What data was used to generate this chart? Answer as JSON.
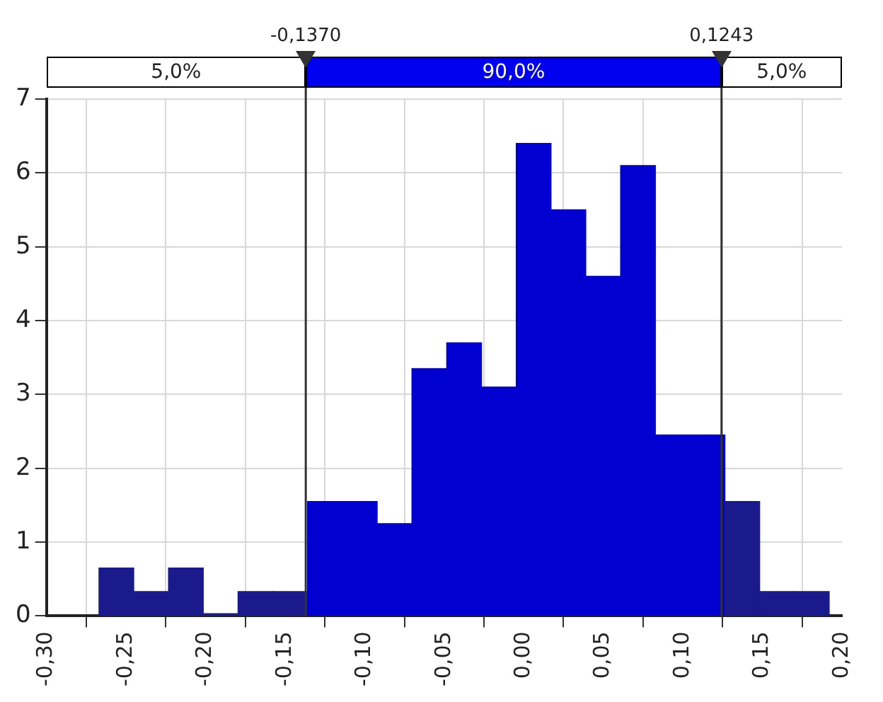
{
  "chart_data": {
    "type": "histogram",
    "bins": [
      -0.267,
      -0.2451,
      -0.2233,
      -0.2014,
      -0.1796,
      -0.1577,
      -0.1359,
      -0.114,
      -0.0921,
      -0.0703,
      -0.0484,
      -0.0266,
      -0.0047,
      0.0171,
      0.039,
      0.0609,
      0.0827,
      0.1046,
      0.1264,
      0.1483,
      0.1701,
      0.192
    ],
    "values": [
      0.65,
      0.33,
      0.65,
      0.03,
      0.33,
      0.33,
      1.55,
      1.55,
      1.25,
      3.35,
      3.7,
      3.1,
      6.4,
      5.5,
      4.6,
      6.1,
      2.45,
      2.45,
      1.55,
      0.33,
      0.33
    ],
    "colors": [
      "#1a1a8c",
      "#1a1a8c",
      "#1a1a8c",
      "#1a1a8c",
      "#1a1a8c",
      "#1a1a8c",
      "#0000d0",
      "#0000d0",
      "#0000d0",
      "#0000d0",
      "#0000d0",
      "#0000d0",
      "#0000d0",
      "#0000d0",
      "#0000d0",
      "#0000d0",
      "#0000d0",
      "#0000d0",
      "#1a1a8c",
      "#1a1a8c",
      "#1a1a8c"
    ],
    "xlim": [
      -0.3,
      0.2
    ],
    "xticks": [
      {
        "value": -0.3,
        "label": "-0,30"
      },
      {
        "value": -0.25,
        "label": "-0,25"
      },
      {
        "value": -0.2,
        "label": "-0,20"
      },
      {
        "value": -0.15,
        "label": "-0,15"
      },
      {
        "value": -0.1,
        "label": "-0,10"
      },
      {
        "value": -0.05,
        "label": "-0,05"
      },
      {
        "value": 0,
        "label": "0,00"
      },
      {
        "value": 0.05,
        "label": "0,05"
      },
      {
        "value": 0.1,
        "label": "0,10"
      },
      {
        "value": 0.15,
        "label": "0,15"
      },
      {
        "value": 0.2,
        "label": "0,20"
      }
    ],
    "ylim": [
      0,
      7
    ],
    "yticks": [
      0,
      1,
      2,
      3,
      4,
      5,
      6,
      7
    ],
    "grid": true,
    "ref_lines": [
      {
        "axis": "x",
        "value": -0.137,
        "label": "-0,1370"
      },
      {
        "axis": "x",
        "value": 0.1243,
        "label": "0,1243"
      }
    ],
    "annotations": [
      "5,0%",
      "90,0%",
      "5,0%"
    ]
  }
}
